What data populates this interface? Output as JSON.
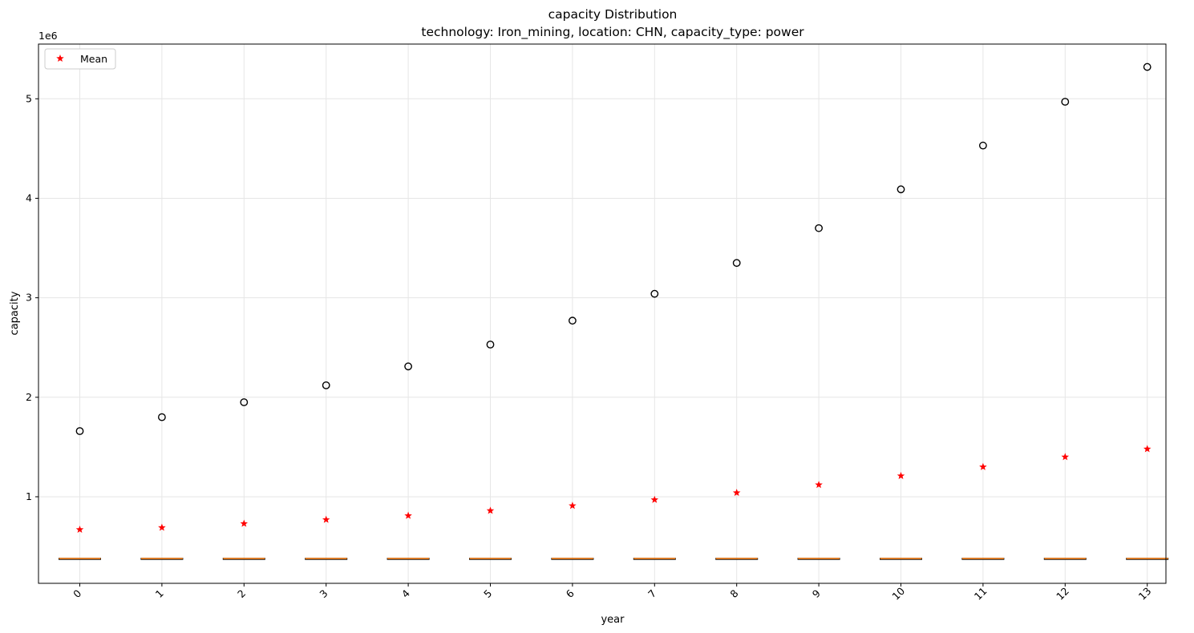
{
  "chart_data": {
    "type": "box",
    "title": "capacity Distribution",
    "subtitle": "technology: Iron_mining, location: CHN, capacity_type: power",
    "xlabel": "year",
    "ylabel": "capacity",
    "y_offset_label": "1e6",
    "categories": [
      "0",
      "1",
      "2",
      "3",
      "4",
      "5",
      "6",
      "7",
      "8",
      "9",
      "10",
      "11",
      "12",
      "13"
    ],
    "boxes": [
      {
        "median": 380000,
        "q1": 378000,
        "q3": 382000,
        "whisker_low": 378000,
        "whisker_high": 382000
      },
      {
        "median": 380000,
        "q1": 378000,
        "q3": 382000,
        "whisker_low": 378000,
        "whisker_high": 382000
      },
      {
        "median": 380000,
        "q1": 378000,
        "q3": 382000,
        "whisker_low": 378000,
        "whisker_high": 382000
      },
      {
        "median": 380000,
        "q1": 378000,
        "q3": 382000,
        "whisker_low": 378000,
        "whisker_high": 382000
      },
      {
        "median": 380000,
        "q1": 378000,
        "q3": 382000,
        "whisker_low": 378000,
        "whisker_high": 382000
      },
      {
        "median": 380000,
        "q1": 378000,
        "q3": 382000,
        "whisker_low": 378000,
        "whisker_high": 382000
      },
      {
        "median": 380000,
        "q1": 378000,
        "q3": 382000,
        "whisker_low": 378000,
        "whisker_high": 382000
      },
      {
        "median": 380000,
        "q1": 378000,
        "q3": 382000,
        "whisker_low": 378000,
        "whisker_high": 382000
      },
      {
        "median": 380000,
        "q1": 378000,
        "q3": 382000,
        "whisker_low": 378000,
        "whisker_high": 382000
      },
      {
        "median": 380000,
        "q1": 378000,
        "q3": 382000,
        "whisker_low": 378000,
        "whisker_high": 382000
      },
      {
        "median": 380000,
        "q1": 378000,
        "q3": 382000,
        "whisker_low": 378000,
        "whisker_high": 382000
      },
      {
        "median": 380000,
        "q1": 378000,
        "q3": 382000,
        "whisker_low": 378000,
        "whisker_high": 382000
      },
      {
        "median": 380000,
        "q1": 378000,
        "q3": 382000,
        "whisker_low": 378000,
        "whisker_high": 382000
      },
      {
        "median": 380000,
        "q1": 378000,
        "q3": 382000,
        "whisker_low": 378000,
        "whisker_high": 382000
      }
    ],
    "outliers": [
      1660000,
      1800000,
      1950000,
      2120000,
      2310000,
      2530000,
      2770000,
      3040000,
      3350000,
      3700000,
      4090000,
      4530000,
      4970000,
      5320000
    ],
    "means": [
      670000,
      690000,
      730000,
      770000,
      810000,
      860000,
      910000,
      970000,
      1040000,
      1120000,
      1210000,
      1300000,
      1400000,
      1480000
    ],
    "legend": {
      "label": "Mean",
      "position": "upper-left"
    },
    "ylim": [
      130000,
      5550000
    ],
    "yticks": [
      1000000,
      2000000,
      3000000,
      4000000,
      5000000
    ],
    "ytick_labels": [
      "1",
      "2",
      "3",
      "4",
      "5"
    ],
    "grid": true,
    "xtick_rotation_deg": 45,
    "colors": {
      "mean": "#ff0000",
      "median": "#ff7f0e",
      "outlier": "#000000",
      "grid": "#e6e6e6",
      "axis": "#000000"
    }
  }
}
